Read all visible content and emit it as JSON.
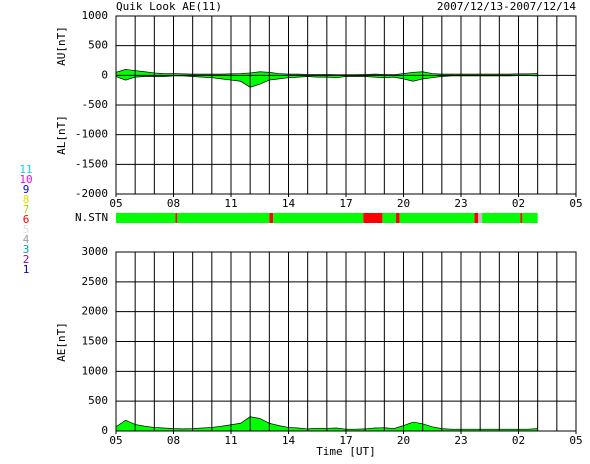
{
  "chart_data": [
    {
      "type": "area",
      "title": "Quik Look AE(11)",
      "subtitle": "2007/12/13-2007/12/14",
      "ylabel_top": "AU[nT]",
      "ylabel_bottom": "AL[nT]",
      "x": [
        0,
        0.5,
        1,
        1.5,
        2,
        2.5,
        3,
        3.5,
        4,
        4.5,
        5,
        5.5,
        6,
        6.5,
        7,
        7.5,
        8,
        8.5,
        9,
        9.5,
        10,
        10.5,
        11,
        11.5,
        12,
        12.5,
        13,
        13.5,
        14,
        14.5,
        15,
        15.5,
        16,
        16.5,
        17,
        17.5,
        18,
        18.5,
        19,
        19.5,
        20,
        20.5,
        21,
        21.5,
        22
      ],
      "series": [
        {
          "name": "AU",
          "color": "#00ff00",
          "values": [
            50,
            100,
            80,
            60,
            40,
            30,
            30,
            25,
            20,
            20,
            20,
            20,
            25,
            30,
            40,
            60,
            50,
            30,
            20,
            20,
            15,
            15,
            15,
            10,
            10,
            10,
            15,
            20,
            15,
            10,
            30,
            50,
            60,
            30,
            20,
            20,
            20,
            20,
            20,
            20,
            20,
            20,
            25,
            25,
            30
          ]
        },
        {
          "name": "AL",
          "color": "#00ff00",
          "values": [
            -20,
            -80,
            -30,
            -20,
            -20,
            -20,
            -10,
            -10,
            -20,
            -30,
            -40,
            -60,
            -80,
            -100,
            -200,
            -150,
            -80,
            -60,
            -40,
            -30,
            -20,
            -30,
            -30,
            -40,
            -20,
            -20,
            -20,
            -30,
            -40,
            -30,
            -60,
            -100,
            -60,
            -40,
            -20,
            -10,
            -10,
            -10,
            -10,
            -10,
            -10,
            -10,
            -5,
            -5,
            -10
          ]
        }
      ],
      "xlim": [
        0,
        24
      ],
      "xticks": [
        {
          "value": 0,
          "label": "05"
        },
        {
          "value": 3,
          "label": "08"
        },
        {
          "value": 6,
          "label": "11"
        },
        {
          "value": 9,
          "label": "14"
        },
        {
          "value": 12,
          "label": "17"
        },
        {
          "value": 15,
          "label": "20"
        },
        {
          "value": 18,
          "label": "23"
        },
        {
          "value": 21,
          "label": "02"
        },
        {
          "value": 24,
          "label": "05"
        }
      ],
      "ylim": [
        -2000,
        1000
      ],
      "yticks": [
        -2000,
        -1500,
        -1000,
        -500,
        0,
        500,
        1000
      ],
      "grid": true
    },
    {
      "type": "status",
      "label": "N.STN",
      "segments": [
        {
          "x0": 0,
          "x1": 3.1,
          "color": "#00ff00"
        },
        {
          "x0": 3.1,
          "x1": 3.2,
          "color": "#ff0000"
        },
        {
          "x0": 3.2,
          "x1": 8,
          "color": "#00ff00"
        },
        {
          "x0": 8,
          "x1": 8.2,
          "color": "#ff0000"
        },
        {
          "x0": 8.2,
          "x1": 12.9,
          "color": "#00ff00"
        },
        {
          "x0": 12.9,
          "x1": 13.9,
          "color": "#ff0000"
        },
        {
          "x0": 13.9,
          "x1": 14.6,
          "color": "#00ff00"
        },
        {
          "x0": 14.6,
          "x1": 14.8,
          "color": "#ff0000"
        },
        {
          "x0": 14.8,
          "x1": 18.7,
          "color": "#00ff00"
        },
        {
          "x0": 18.7,
          "x1": 18.9,
          "color": "#ff0000"
        },
        {
          "x0": 18.9,
          "x1": 19.1,
          "color": "#c0c0c0"
        },
        {
          "x0": 19.1,
          "x1": 21.1,
          "color": "#00ff00"
        },
        {
          "x0": 21.1,
          "x1": 21.2,
          "color": "#ff0000"
        },
        {
          "x0": 21.2,
          "x1": 22,
          "color": "#00ff00"
        }
      ],
      "legend": [
        {
          "label": "11",
          "color": "#00e0e0"
        },
        {
          "label": "10",
          "color": "#ff00ff"
        },
        {
          "label": "9",
          "color": "#0000ff"
        },
        {
          "label": "8",
          "color": "#e0e000"
        },
        {
          "label": "7",
          "color": "#a0e000"
        },
        {
          "label": "6",
          "color": "#ff0000"
        },
        {
          "label": "5",
          "color": "#e0e0e0"
        },
        {
          "label": "4",
          "color": "#a0a0a0"
        },
        {
          "label": "3",
          "color": "#00a0a0"
        },
        {
          "label": "2",
          "color": "#a000a0"
        },
        {
          "label": "1",
          "color": "#0000c0"
        }
      ]
    },
    {
      "type": "area",
      "ylabel": "AE[nT]",
      "xlabel": "Time [UT]",
      "x": [
        0,
        0.5,
        1,
        1.5,
        2,
        2.5,
        3,
        3.5,
        4,
        4.5,
        5,
        5.5,
        6,
        6.5,
        7,
        7.5,
        8,
        8.5,
        9,
        9.5,
        10,
        10.5,
        11,
        11.5,
        12,
        12.5,
        13,
        13.5,
        14,
        14.5,
        15,
        15.5,
        16,
        16.5,
        17,
        17.5,
        18,
        18.5,
        19,
        19.5,
        20,
        20.5,
        21,
        21.5,
        22
      ],
      "series": [
        {
          "name": "AE",
          "color": "#00ff00",
          "values": [
            70,
            180,
            110,
            80,
            60,
            50,
            40,
            35,
            40,
            50,
            60,
            80,
            105,
            130,
            240,
            210,
            130,
            90,
            60,
            50,
            35,
            45,
            45,
            50,
            30,
            30,
            35,
            50,
            55,
            40,
            90,
            150,
            120,
            70,
            40,
            30,
            30,
            30,
            30,
            30,
            30,
            30,
            30,
            30,
            40
          ]
        }
      ],
      "xlim": [
        0,
        24
      ],
      "xticks": [
        {
          "value": 0,
          "label": "05"
        },
        {
          "value": 3,
          "label": "08"
        },
        {
          "value": 6,
          "label": "11"
        },
        {
          "value": 9,
          "label": "14"
        },
        {
          "value": 12,
          "label": "17"
        },
        {
          "value": 15,
          "label": "20"
        },
        {
          "value": 18,
          "label": "23"
        },
        {
          "value": 21,
          "label": "02"
        },
        {
          "value": 24,
          "label": "05"
        }
      ],
      "ylim": [
        0,
        3000
      ],
      "yticks": [
        0,
        500,
        1000,
        1500,
        2000,
        2500,
        3000
      ],
      "grid": true
    }
  ]
}
